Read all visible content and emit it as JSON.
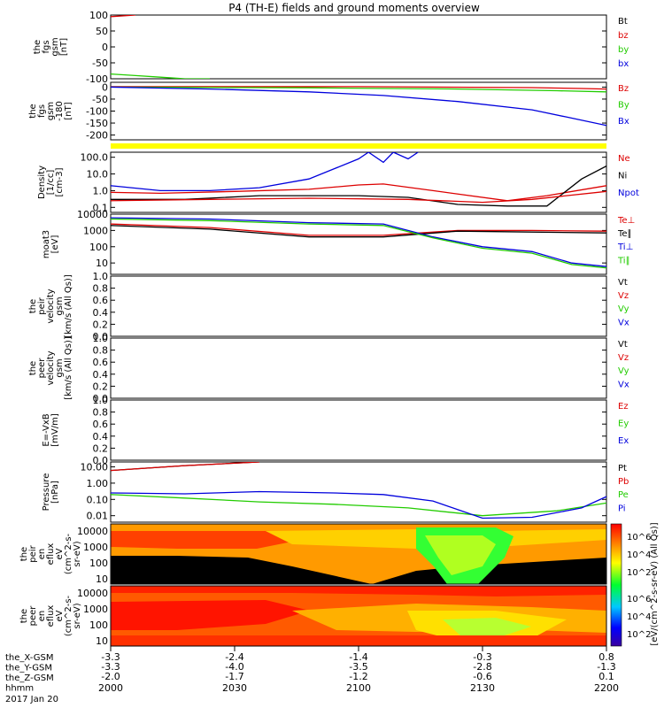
{
  "title": "P4 (TH-E) fields and ground moments overview",
  "colors": {
    "black": "#000000",
    "red": "#dd0000",
    "green": "#22cc00",
    "blue": "#0000dd",
    "yellow": "#ffff00"
  },
  "x_axis": {
    "ticks": [
      {
        "hhmm": "2000",
        "x_gsm": "-3.3",
        "y_gsm": "-3.3",
        "z_gsm": "-2.0"
      },
      {
        "hhmm": "2030",
        "x_gsm": "-2.4",
        "y_gsm": "-4.0",
        "z_gsm": "-1.7"
      },
      {
        "hhmm": "2100",
        "x_gsm": "-1.4",
        "y_gsm": "-3.5",
        "z_gsm": "-1.2"
      },
      {
        "hhmm": "2130",
        "x_gsm": "-0.3",
        "y_gsm": "-2.8",
        "z_gsm": "-0.6"
      },
      {
        "hhmm": "2200",
        "x_gsm": "0.8",
        "y_gsm": "-1.3",
        "z_gsm": "0.1"
      }
    ],
    "row_labels": [
      "the_X-GSM",
      "the_Y-GSM",
      "the_Z-GSM",
      "hhmm"
    ],
    "date": "2017 Jan 20"
  },
  "chart_data": [
    {
      "type": "line",
      "ylabel": [
        "the",
        "fgs",
        "gsm",
        "[nT]"
      ],
      "ylim": [
        -100,
        100
      ],
      "yticks": [
        "100",
        "50",
        "0",
        "-50",
        "-100"
      ],
      "series": [
        {
          "name": "Bt",
          "color": "#000000"
        },
        {
          "name": "bz",
          "color": "#dd0000",
          "x": [
            0,
            0.05
          ],
          "y": [
            95,
            100
          ]
        },
        {
          "name": "by",
          "color": "#22cc00",
          "x": [
            0,
            0.05,
            0.1,
            0.15,
            0.2
          ],
          "y": [
            -85,
            -90,
            -95,
            -100,
            -100
          ]
        },
        {
          "name": "bx",
          "color": "#0000dd"
        }
      ]
    },
    {
      "type": "line",
      "ylabel": [
        "the",
        "fgs",
        "gsm",
        "-180",
        "[nT]"
      ],
      "ylim": [
        -220,
        20
      ],
      "yticks": [
        "0",
        "-50",
        "-100",
        "-150",
        "-200"
      ],
      "series": [
        {
          "name": "Bz",
          "color": "#dd0000",
          "x": [
            0,
            0.5,
            0.85,
            0.95,
            1.0
          ],
          "y": [
            2,
            2,
            -2,
            -6,
            -8
          ]
        },
        {
          "name": "By",
          "color": "#22cc00",
          "x": [
            0,
            0.4,
            0.7,
            0.9,
            1.0
          ],
          "y": [
            0,
            -3,
            -8,
            -15,
            -20
          ]
        },
        {
          "name": "Bx",
          "color": "#0000dd",
          "x": [
            0,
            0.2,
            0.4,
            0.55,
            0.7,
            0.85,
            0.92,
            1.0
          ],
          "y": [
            0,
            -8,
            -20,
            -35,
            -60,
            -95,
            -125,
            -160
          ]
        }
      ]
    },
    {
      "type": "line",
      "yscale": "log",
      "ylabel": [
        "Density",
        "[1/cc]",
        "[cm-3]"
      ],
      "ylim": [
        0.05,
        200
      ],
      "yticks": [
        "100.0",
        "10.0",
        "1.0",
        "0.1"
      ],
      "series": [
        {
          "name": "Ne",
          "color": "#dd0000",
          "x": [
            0,
            0.1,
            0.25,
            0.4,
            0.5,
            0.55,
            0.65,
            0.8,
            0.88,
            1.0
          ],
          "y": [
            0.8,
            0.7,
            0.9,
            1.2,
            2.2,
            2.5,
            1.0,
            0.25,
            0.5,
            2.0
          ]
        },
        {
          "name": "Ni",
          "color": "#000000",
          "x": [
            0,
            0.15,
            0.3,
            0.5,
            0.6,
            0.7,
            0.8,
            0.88,
            0.95,
            1.0
          ],
          "y": [
            0.3,
            0.3,
            0.5,
            0.5,
            0.4,
            0.15,
            0.12,
            0.12,
            5,
            30
          ]
        },
        {
          "name": "Npot",
          "color": "#0000dd",
          "x": [
            0,
            0.1,
            0.2,
            0.3,
            0.4,
            0.45,
            0.5,
            0.52,
            0.55,
            0.57,
            0.6,
            0.62
          ],
          "y": [
            2,
            1,
            1,
            1.5,
            5,
            20,
            80,
            200,
            50,
            200,
            80,
            200
          ]
        },
        {
          "name": "",
          "color": "#dd0000",
          "x": [
            0,
            0.2,
            0.4,
            0.6,
            0.75,
            0.85,
            1.0
          ],
          "y": [
            0.25,
            0.3,
            0.35,
            0.3,
            0.2,
            0.3,
            0.9
          ]
        }
      ]
    },
    {
      "type": "line",
      "yscale": "log",
      "ylabel": [
        "moat3",
        "[eV]"
      ],
      "ylim": [
        2,
        10000
      ],
      "yticks": [
        "10000",
        "1000",
        "100",
        "10"
      ],
      "series": [
        {
          "name": "Te⊥",
          "color": "#dd0000",
          "x": [
            0,
            0.2,
            0.4,
            0.55,
            0.7,
            0.85,
            1.0
          ],
          "y": [
            2500,
            1500,
            500,
            500,
            1000,
            1000,
            900
          ]
        },
        {
          "name": "Te∥",
          "color": "#000000",
          "x": [
            0,
            0.2,
            0.4,
            0.55,
            0.7,
            0.85,
            1.0
          ],
          "y": [
            2000,
            1200,
            400,
            400,
            900,
            800,
            700
          ]
        },
        {
          "name": "Ti⊥",
          "color": "#0000dd",
          "x": [
            0,
            0.2,
            0.4,
            0.55,
            0.65,
            0.75,
            0.85,
            0.93,
            1.0
          ],
          "y": [
            6000,
            5000,
            3000,
            2500,
            400,
            100,
            50,
            10,
            6
          ]
        },
        {
          "name": "Ti∥",
          "color": "#22cc00",
          "x": [
            0,
            0.2,
            0.4,
            0.55,
            0.65,
            0.75,
            0.85,
            0.93,
            1.0
          ],
          "y": [
            5000,
            4000,
            2500,
            2000,
            350,
            80,
            40,
            8,
            5
          ]
        }
      ]
    },
    {
      "type": "line",
      "ylabel": [
        "the",
        "peir",
        "velocity",
        "gsm",
        "[km/s (All Qs)]"
      ],
      "ylim": [
        0,
        1
      ],
      "yticks": [
        "1.0",
        "0.8",
        "0.6",
        "0.4",
        "0.2",
        "0.0"
      ],
      "series": [
        {
          "name": "Vt",
          "color": "#000000"
        },
        {
          "name": "Vz",
          "color": "#dd0000"
        },
        {
          "name": "Vy",
          "color": "#22cc00"
        },
        {
          "name": "Vx",
          "color": "#0000dd"
        }
      ]
    },
    {
      "type": "line",
      "ylabel": [
        "the",
        "peer",
        "velocity",
        "gsm",
        "[km/s (All Qs)]"
      ],
      "ylim": [
        0,
        1
      ],
      "yticks": [
        "1.0",
        "0.8",
        "0.6",
        "0.4",
        "0.2",
        "0.0"
      ],
      "series": [
        {
          "name": "Vt",
          "color": "#000000"
        },
        {
          "name": "Vz",
          "color": "#dd0000"
        },
        {
          "name": "Vy",
          "color": "#22cc00"
        },
        {
          "name": "Vx",
          "color": "#0000dd"
        }
      ]
    },
    {
      "type": "line",
      "ylabel": [
        "E=-VxB",
        "[mV/m]"
      ],
      "ylim": [
        0,
        1
      ],
      "yticks": [
        "1.0",
        "0.8",
        "0.6",
        "0.4",
        "0.2",
        "0.0"
      ],
      "series": [
        {
          "name": "Ez",
          "color": "#dd0000"
        },
        {
          "name": "Ey",
          "color": "#22cc00"
        },
        {
          "name": "Ex",
          "color": "#0000dd"
        }
      ]
    },
    {
      "type": "line",
      "yscale": "log",
      "ylabel": [
        "Pressure",
        "[nPa]"
      ],
      "ylim": [
        0.004,
        20
      ],
      "yticks": [
        "10.00",
        "1.00",
        "0.10",
        "0.01"
      ],
      "series": [
        {
          "name": "Pt",
          "color": "#000000",
          "x": [
            0,
            0.15,
            0.3
          ],
          "y": [
            6,
            12,
            20
          ]
        },
        {
          "name": "Pb",
          "color": "#dd0000",
          "x": [
            0,
            0.15,
            0.3
          ],
          "y": [
            6,
            12,
            20
          ]
        },
        {
          "name": "Pe",
          "color": "#22cc00",
          "x": [
            0,
            0.15,
            0.3,
            0.45,
            0.6,
            0.75,
            0.9,
            1.0
          ],
          "y": [
            0.2,
            0.12,
            0.07,
            0.05,
            0.03,
            0.01,
            0.02,
            0.06
          ]
        },
        {
          "name": "Pi",
          "color": "#0000dd",
          "x": [
            0,
            0.15,
            0.3,
            0.45,
            0.55,
            0.65,
            0.75,
            0.85,
            0.95,
            1.0
          ],
          "y": [
            0.25,
            0.22,
            0.3,
            0.25,
            0.2,
            0.08,
            0.007,
            0.008,
            0.03,
            0.15
          ]
        }
      ]
    },
    {
      "type": "heatmap",
      "ylabel": [
        "the",
        "peir",
        "en",
        "eflux",
        "eV",
        "(cm^2-s-",
        "sr-eV)"
      ],
      "yticks": [
        "10000",
        "1000",
        "100",
        "10"
      ],
      "colorbar": {
        "label": "[eV/(cm^2-s-sr-eV) (All Qs)]",
        "ticks": [
          "10^6",
          "10^4",
          "10^2"
        ]
      }
    },
    {
      "type": "heatmap",
      "ylabel": [
        "the",
        "peer",
        "en",
        "eflux",
        "eV",
        "(cm^2-s-",
        "sr-eV)"
      ],
      "yticks": [
        "10000",
        "1000",
        "100",
        "10"
      ],
      "colorbar": {
        "label": "[eV/(cm^2-s-sr-eV) (All Qs)]",
        "ticks": [
          "10^6",
          "10^4",
          "10^2"
        ]
      }
    }
  ]
}
